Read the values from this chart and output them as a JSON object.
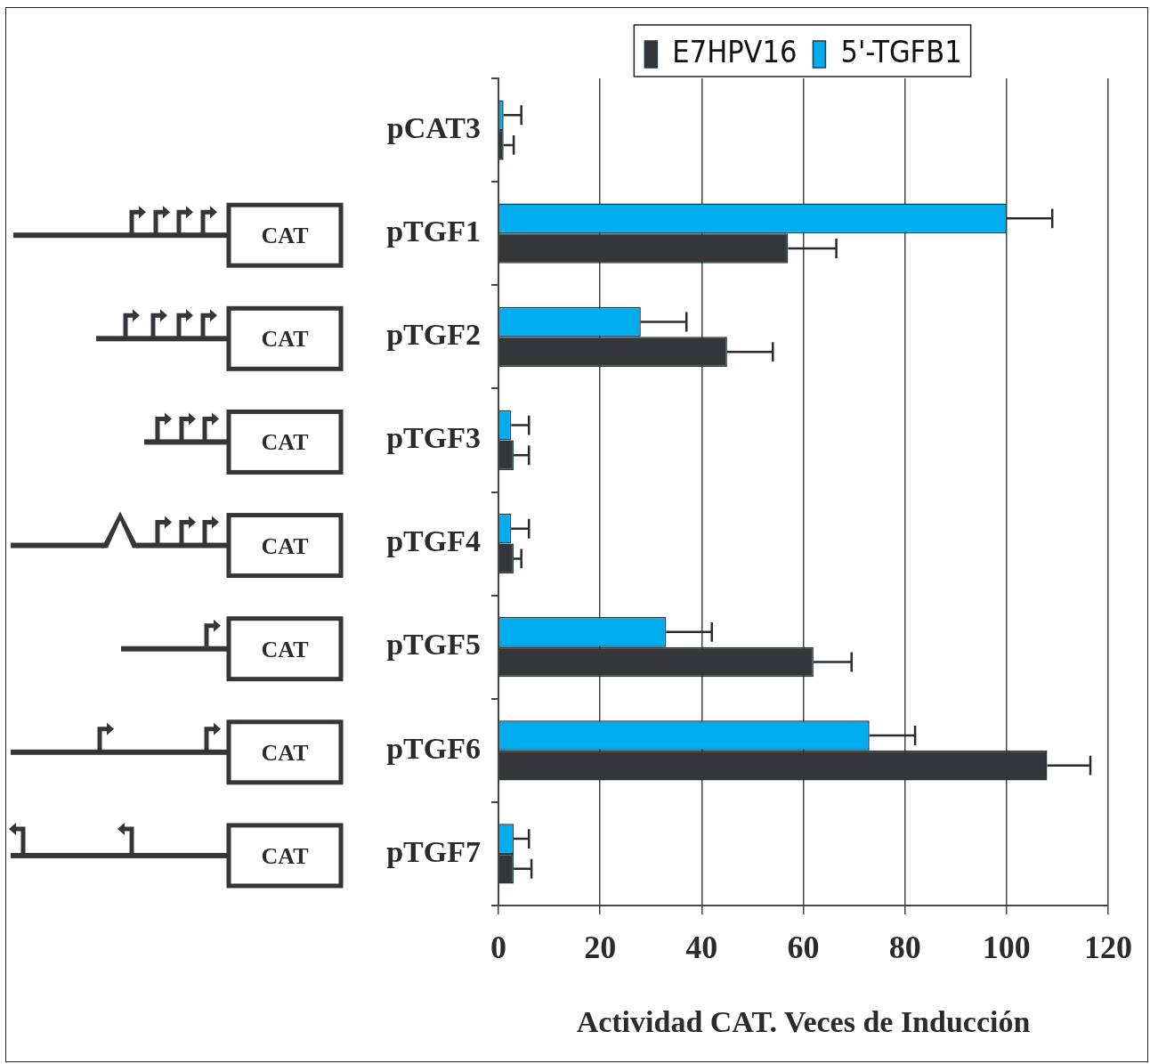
{
  "chart_data": {
    "type": "bar",
    "orientation": "horizontal",
    "xlabel": "Actividad CAT. Veces de Inducción",
    "categories": [
      "pCAT3",
      "pTGF1",
      "pTGF2",
      "pTGF3",
      "pTGF4",
      "pTGF5",
      "pTGF6",
      "pTGF7"
    ],
    "series": [
      {
        "name": "E7HPV16",
        "color": "#35363a",
        "values": [
          1,
          57,
          45,
          3,
          3,
          62,
          108,
          3
        ],
        "errors": [
          [
            1,
            3
          ],
          [
            57,
            66.5
          ],
          [
            45,
            54
          ],
          [
            3,
            6
          ],
          [
            3,
            4.5
          ],
          [
            62,
            69.5
          ],
          [
            108,
            116.5
          ],
          [
            3,
            6.5
          ]
        ]
      },
      {
        "name": "5'-TGFB1",
        "color": "#00aeef",
        "values": [
          1,
          100,
          28,
          2.5,
          2.5,
          33,
          73,
          3
        ],
        "errors": [
          [
            1,
            4.5
          ],
          [
            100,
            109
          ],
          [
            28,
            37
          ],
          [
            2.5,
            6
          ],
          [
            2.5,
            6
          ],
          [
            33,
            42
          ],
          [
            73,
            82
          ],
          [
            3,
            6
          ]
        ]
      }
    ],
    "xlim": [
      0,
      120
    ],
    "xticks": [
      0,
      20,
      40,
      60,
      80,
      100,
      120
    ],
    "grid": "x",
    "legend": "top",
    "annotations": [
      "CAT"
    ]
  }
}
